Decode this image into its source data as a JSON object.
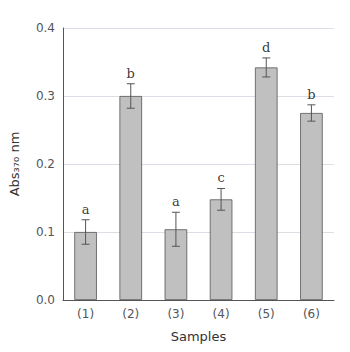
{
  "chart_data": {
    "type": "bar",
    "categories": [
      "(1)",
      "(2)",
      "(3)",
      "(4)",
      "(5)",
      "(6)"
    ],
    "values": [
      0.1,
      0.3,
      0.104,
      0.148,
      0.342,
      0.275
    ],
    "errors": [
      0.018,
      0.018,
      0.025,
      0.016,
      0.014,
      0.012
    ],
    "annotations": [
      "a",
      "b",
      "a",
      "c",
      "d",
      "b"
    ],
    "xlabel": "Samples",
    "ylabel": "Abs₃₇₀ nm",
    "color": "#c0c0c0",
    "ylim": [
      0.0,
      0.4
    ],
    "yticks": [
      {
        "value": 0,
        "label": "0.0"
      },
      0.1,
      0.2,
      0.3,
      0.4
    ],
    "grid": true
  }
}
